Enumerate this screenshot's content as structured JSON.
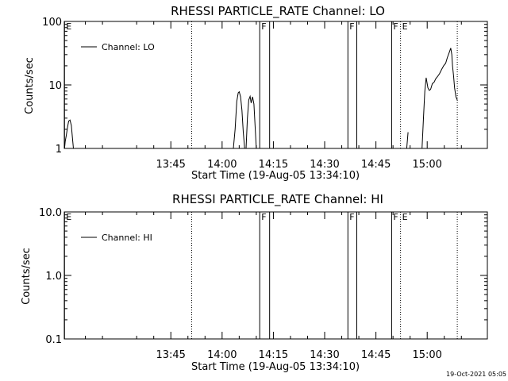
{
  "footer": {
    "timestamp": "19-Oct-2021 05:05"
  },
  "chart_data": [
    {
      "type": "line",
      "title": "RHESSI PARTICLE_RATE Channel: LO",
      "xlabel": "Start Time (19-Aug-05 13:34:10)",
      "ylabel": "Counts/sec",
      "yscale": "log",
      "ylim": [
        1,
        100
      ],
      "xlim_minutes": [
        13.83,
        73.5
      ],
      "xticks": [
        {
          "m": 45,
          "label": "13:45"
        },
        {
          "m": 60,
          "label": "14:00"
        },
        {
          "m": 75,
          "label": "14:15"
        },
        {
          "m": 90,
          "label": "14:30"
        },
        {
          "m": 105,
          "label": "14:45"
        },
        {
          "m": 120,
          "label": "15:00"
        }
      ],
      "yticks": [
        {
          "v": 1,
          "label": "1"
        },
        {
          "v": 10,
          "label": "10"
        },
        {
          "v": 100,
          "label": "100"
        }
      ],
      "legend": {
        "position": "top-left",
        "entries": [
          "Channel: LO"
        ]
      },
      "markers": [
        {
          "m": 13.9,
          "style": "solid",
          "label": "E"
        },
        {
          "m": 51.1,
          "style": "dotted",
          "label": ""
        },
        {
          "m": 71.0,
          "style": "solid",
          "label": "F"
        },
        {
          "m": 73.9,
          "style": "solid",
          "label": ""
        },
        {
          "m": 96.8,
          "style": "solid",
          "label": "F"
        },
        {
          "m": 99.4,
          "style": "solid",
          "label": ""
        },
        {
          "m": 109.6,
          "style": "solid",
          "label": "F"
        },
        {
          "m": 112.2,
          "style": "dotted",
          "label": "E"
        },
        {
          "m": 128.8,
          "style": "dotted",
          "label": ""
        }
      ],
      "series": [
        {
          "name": "Channel: LO",
          "segments": [
            [
              [
                13.9,
                1.0
              ],
              [
                14.1,
                1.3
              ],
              [
                14.4,
                1.6
              ],
              [
                14.8,
                2.2
              ],
              [
                15.1,
                2.7
              ],
              [
                15.5,
                2.8
              ],
              [
                15.9,
                2.3
              ],
              [
                16.2,
                1.5
              ],
              [
                16.5,
                1.0
              ]
            ],
            [
              [
                63.3,
                1.0
              ],
              [
                63.8,
                2.0
              ],
              [
                64.3,
                5.5
              ],
              [
                64.7,
                7.5
              ],
              [
                65.0,
                7.8
              ],
              [
                65.4,
                6.5
              ],
              [
                65.8,
                4.0
              ],
              [
                66.2,
                1.8
              ],
              [
                66.6,
                1.0
              ]
            ],
            [
              [
                67.0,
                1.0
              ],
              [
                67.4,
                3.0
              ],
              [
                67.8,
                5.8
              ],
              [
                68.2,
                6.6
              ],
              [
                68.5,
                5.2
              ],
              [
                68.9,
                6.5
              ],
              [
                69.3,
                5.0
              ],
              [
                69.7,
                2.0
              ],
              [
                70.0,
                1.0
              ]
            ],
            [
              [
                114.0,
                1.0
              ],
              [
                114.4,
                1.8
              ]
            ],
            [
              [
                118.5,
                1.0
              ],
              [
                118.9,
                3.0
              ],
              [
                119.3,
                8.0
              ],
              [
                119.7,
                13.0
              ],
              [
                120.2,
                9.0
              ],
              [
                120.6,
                8.2
              ],
              [
                121.0,
                8.5
              ],
              [
                121.5,
                10.5
              ],
              [
                122.0,
                11.0
              ],
              [
                122.5,
                12.5
              ],
              [
                123.0,
                13.5
              ],
              [
                123.6,
                15.0
              ],
              [
                124.2,
                17.5
              ],
              [
                124.8,
                20.0
              ],
              [
                125.4,
                22.0
              ],
              [
                125.9,
                27.0
              ],
              [
                126.4,
                32.0
              ],
              [
                126.9,
                38.0
              ],
              [
                127.2,
                30.0
              ],
              [
                127.4,
                20.0
              ],
              [
                127.7,
                14.0
              ],
              [
                128.0,
                9.0
              ],
              [
                128.4,
                6.5
              ],
              [
                128.8,
                5.8
              ]
            ]
          ]
        }
      ]
    },
    {
      "type": "line",
      "title": "RHESSI PARTICLE_RATE Channel: HI",
      "xlabel": "Start Time (19-Aug-05 13:34:10)",
      "ylabel": "Counts/sec",
      "yscale": "log",
      "ylim": [
        0.1,
        10
      ],
      "xlim_minutes": [
        13.83,
        73.5
      ],
      "xticks": [
        {
          "m": 45,
          "label": "13:45"
        },
        {
          "m": 60,
          "label": "14:00"
        },
        {
          "m": 75,
          "label": "14:15"
        },
        {
          "m": 90,
          "label": "14:30"
        },
        {
          "m": 105,
          "label": "14:45"
        },
        {
          "m": 120,
          "label": "15:00"
        }
      ],
      "yticks": [
        {
          "v": 0.1,
          "label": "0.1"
        },
        {
          "v": 1,
          "label": "1.0"
        },
        {
          "v": 10,
          "label": "10.0"
        }
      ],
      "legend": {
        "position": "top-left",
        "entries": [
          "Channel: HI"
        ]
      },
      "markers": [
        {
          "m": 13.9,
          "style": "solid",
          "label": "E"
        },
        {
          "m": 51.1,
          "style": "dotted",
          "label": ""
        },
        {
          "m": 71.0,
          "style": "solid",
          "label": "F"
        },
        {
          "m": 73.9,
          "style": "solid",
          "label": ""
        },
        {
          "m": 96.8,
          "style": "solid",
          "label": "F"
        },
        {
          "m": 99.4,
          "style": "solid",
          "label": ""
        },
        {
          "m": 109.6,
          "style": "solid",
          "label": "F"
        },
        {
          "m": 112.2,
          "style": "dotted",
          "label": "E"
        },
        {
          "m": 128.8,
          "style": "dotted",
          "label": ""
        }
      ],
      "series": [
        {
          "name": "Channel: HI",
          "segments": []
        }
      ]
    }
  ]
}
